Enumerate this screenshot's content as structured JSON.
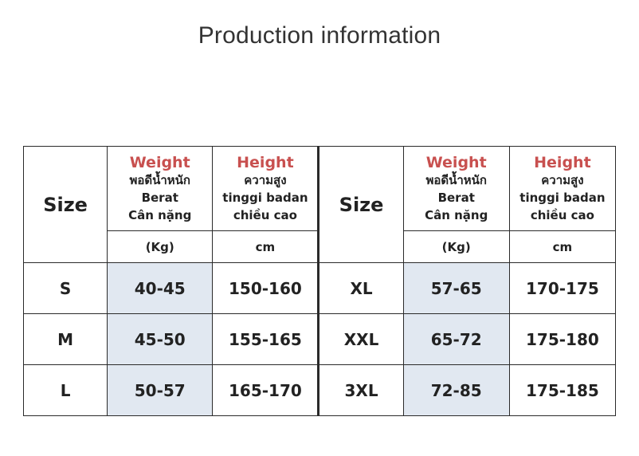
{
  "title": "Production information",
  "table": {
    "columns": {
      "size": "Size",
      "weight": {
        "title": "Weight",
        "lines": [
          "พอดีน้ำหนัก",
          "Berat",
          "Cân nặng"
        ],
        "unit": "(Kg)"
      },
      "height": {
        "title": "Height",
        "lines": [
          "ความสูง",
          "tinggi badan",
          "chiều cao"
        ],
        "unit": "cm"
      }
    },
    "rows": [
      {
        "left": {
          "size": "S",
          "weight": "40-45",
          "height": "150-160"
        },
        "right": {
          "size": "XL",
          "weight": "57-65",
          "height": "170-175"
        }
      },
      {
        "left": {
          "size": "M",
          "weight": "45-50",
          "height": "155-165"
        },
        "right": {
          "size": "XXL",
          "weight": "65-72",
          "height": "175-180"
        }
      },
      {
        "left": {
          "size": "L",
          "weight": "50-57",
          "height": "165-170"
        },
        "right": {
          "size": "3XL",
          "weight": "72-85",
          "height": "175-185"
        }
      }
    ],
    "shade_color": "#e1e8f1",
    "accent_color": "#c8504f"
  }
}
